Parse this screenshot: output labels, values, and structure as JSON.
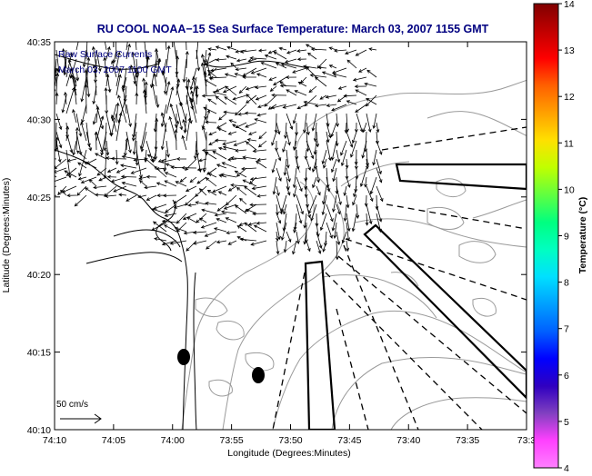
{
  "title": "RU COOL  NOAA−15  Sea Surface Temperature:  March 03, 2007 1155 GMT",
  "overlay": {
    "line1": "Raw Surface Currents",
    "line2": "March 03, 2007 1100 GMT"
  },
  "axes": {
    "xlabel": "Longitude (Degrees:Minutes)",
    "ylabel": "Latitude (Degrees:Minutes)",
    "xticks": [
      "74:10",
      "74:05",
      "74:00",
      "73:55",
      "73:50",
      "73:45",
      "73:40",
      "73:35",
      "73:3"
    ],
    "yticks": [
      "40:35",
      "40:30",
      "40:25",
      "40:20",
      "40:15",
      "40:10"
    ]
  },
  "scale_label": "50 cm/s",
  "colorbar": {
    "label": "Temperature (°C)",
    "ticks": [
      "14",
      "13",
      "12",
      "11",
      "10",
      "9",
      "8",
      "7",
      "6",
      "5",
      "4"
    ],
    "colors": [
      "#800000",
      "#c00000",
      "#ff0000",
      "#ff6000",
      "#ffa000",
      "#ffe000",
      "#c0ff00",
      "#60ff40",
      "#00ff80",
      "#00ffc0",
      "#00e0ff",
      "#00a0ff",
      "#0060ff",
      "#0000ff",
      "#3000c0",
      "#8040c0",
      "#ff40ff",
      "#ff80ff"
    ]
  },
  "colors": {
    "title": "#000080",
    "overlay": "#000080",
    "frame": "#000000",
    "land_contour": "#000000",
    "bathymetry": "#9a9a9a"
  }
}
